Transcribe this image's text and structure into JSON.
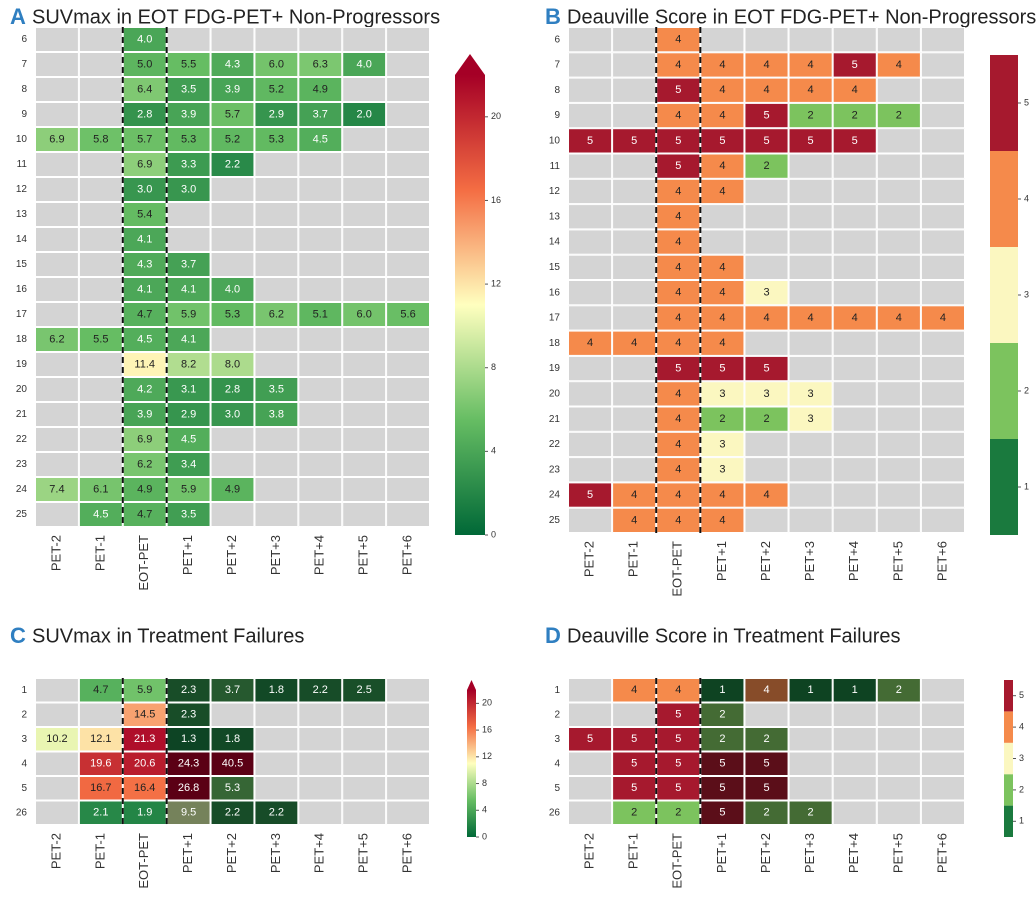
{
  "chart_data": [
    {
      "type": "heatmap",
      "letter": "A",
      "title": "SUVmax in EOT FDG-PET+ Non-Progressors",
      "columns": [
        "PET-2",
        "PET-1",
        "EOT-PET",
        "PET+1",
        "PET+2",
        "PET+3",
        "PET+4",
        "PET+5",
        "PET+6"
      ],
      "rows": [
        "6",
        "7",
        "8",
        "9",
        "10",
        "11",
        "12",
        "13",
        "14",
        "15",
        "16",
        "17",
        "18",
        "19",
        "20",
        "21",
        "22",
        "23",
        "24",
        "25"
      ],
      "values": [
        [
          null,
          null,
          4.0,
          null,
          null,
          null,
          null,
          null,
          null
        ],
        [
          null,
          null,
          5.0,
          5.5,
          4.3,
          6.0,
          6.3,
          4.0,
          null
        ],
        [
          null,
          null,
          6.4,
          3.5,
          3.9,
          5.2,
          4.9,
          null,
          null
        ],
        [
          null,
          null,
          2.8,
          3.9,
          5.7,
          2.9,
          3.7,
          2.0,
          null
        ],
        [
          6.9,
          5.8,
          5.7,
          5.3,
          5.2,
          5.3,
          4.5,
          null,
          null
        ],
        [
          null,
          null,
          6.9,
          3.3,
          2.2,
          null,
          null,
          null,
          null
        ],
        [
          null,
          null,
          3.0,
          3.0,
          null,
          null,
          null,
          null,
          null
        ],
        [
          null,
          null,
          5.4,
          null,
          null,
          null,
          null,
          null,
          null
        ],
        [
          null,
          null,
          4.1,
          null,
          null,
          null,
          null,
          null,
          null
        ],
        [
          null,
          null,
          4.3,
          3.7,
          null,
          null,
          null,
          null,
          null
        ],
        [
          null,
          null,
          4.1,
          4.1,
          4.0,
          null,
          null,
          null,
          null
        ],
        [
          null,
          null,
          4.7,
          5.9,
          5.3,
          6.2,
          5.1,
          6.0,
          5.6
        ],
        [
          6.2,
          5.5,
          4.5,
          4.1,
          null,
          null,
          null,
          null,
          null
        ],
        [
          null,
          null,
          11.4,
          8.2,
          8.0,
          null,
          null,
          null,
          null
        ],
        [
          null,
          null,
          4.2,
          3.1,
          2.8,
          3.5,
          null,
          null,
          null
        ],
        [
          null,
          null,
          3.9,
          2.9,
          3.0,
          3.8,
          null,
          null,
          null
        ],
        [
          null,
          null,
          6.9,
          4.5,
          null,
          null,
          null,
          null,
          null
        ],
        [
          null,
          null,
          6.2,
          3.4,
          null,
          null,
          null,
          null,
          null
        ],
        [
          7.4,
          6.1,
          4.9,
          5.9,
          4.9,
          null,
          null,
          null,
          null
        ],
        [
          null,
          4.5,
          4.7,
          3.5,
          null,
          null,
          null,
          null,
          null
        ]
      ],
      "value_labels": [
        [
          null,
          null,
          "4.0",
          null,
          null,
          null,
          null,
          null,
          null
        ],
        [
          null,
          null,
          "5.0",
          "5.5",
          "4.3",
          "6.0",
          "6.3",
          "4.0",
          null
        ],
        [
          null,
          null,
          "6.4",
          "3.5",
          "3.9",
          "5.2",
          "4.9",
          null,
          null
        ],
        [
          null,
          null,
          "2.8",
          "3.9",
          "5.7",
          "2.9",
          "3.7",
          "2.0",
          null
        ],
        [
          "6.9",
          "5.8",
          "5.7",
          "5.3",
          "5.2",
          "5.3",
          "4.5",
          null,
          null
        ],
        [
          null,
          null,
          "6.9",
          "3.3",
          "2.2",
          null,
          null,
          null,
          null
        ],
        [
          null,
          null,
          "3.0",
          "3.0",
          null,
          null,
          null,
          null,
          null
        ],
        [
          null,
          null,
          "5.4",
          null,
          null,
          null,
          null,
          null,
          null
        ],
        [
          null,
          null,
          "4.1",
          null,
          null,
          null,
          null,
          null,
          null
        ],
        [
          null,
          null,
          "4.3",
          "3.7",
          null,
          null,
          null,
          null,
          null
        ],
        [
          null,
          null,
          "4.1",
          "4.1",
          "4.0",
          null,
          null,
          null,
          null
        ],
        [
          null,
          null,
          "4.7",
          "5.9",
          "5.3",
          "6.2",
          "5.1",
          "6.0",
          "5.6"
        ],
        [
          "6.2",
          "5.5",
          "4.5",
          "4.1",
          null,
          null,
          null,
          null,
          null
        ],
        [
          null,
          null,
          "11.4",
          "8.2",
          "8.0",
          null,
          null,
          null,
          null
        ],
        [
          null,
          null,
          "4.2",
          "3.1",
          "2.8",
          "3.5",
          null,
          null,
          null
        ],
        [
          null,
          null,
          "3.9",
          "2.9",
          "3.0",
          "3.8",
          null,
          null,
          null
        ],
        [
          null,
          null,
          "6.9",
          "4.5",
          null,
          null,
          null,
          null,
          null
        ],
        [
          null,
          null,
          "6.2",
          "3.4",
          null,
          null,
          null,
          null,
          null
        ],
        [
          "7.4",
          "6.1",
          "4.9",
          "5.9",
          "4.9",
          null,
          null,
          null,
          null
        ],
        [
          null,
          "4.5",
          "4.7",
          "3.5",
          null,
          null,
          null,
          null,
          null
        ]
      ],
      "colormap": [
        "#006837",
        "#66bd63",
        "#ffffbf",
        "#f46d43",
        "#a50026"
      ],
      "zlim": [
        0,
        22
      ],
      "zticks": [
        0,
        4,
        8,
        12,
        16,
        20
      ],
      "extend": "max"
    },
    {
      "type": "discrete-heatmap",
      "letter": "B",
      "title": "Deauville Score in EOT FDG-PET+ Non-Progressors",
      "columns": [
        "PET-2",
        "PET-1",
        "EOT-PET",
        "PET+1",
        "PET+2",
        "PET+3",
        "PET+4",
        "PET+5",
        "PET+6"
      ],
      "rows": [
        "6",
        "7",
        "8",
        "9",
        "10",
        "11",
        "12",
        "13",
        "14",
        "15",
        "16",
        "17",
        "18",
        "19",
        "20",
        "21",
        "22",
        "23",
        "24",
        "25"
      ],
      "values": [
        [
          null,
          null,
          4,
          null,
          null,
          null,
          null,
          null,
          null
        ],
        [
          null,
          null,
          4,
          4,
          4,
          4,
          5,
          4,
          null
        ],
        [
          null,
          null,
          5,
          4,
          4,
          4,
          4,
          null,
          null
        ],
        [
          null,
          null,
          4,
          4,
          5,
          2,
          2,
          2,
          null
        ],
        [
          5,
          5,
          5,
          5,
          5,
          5,
          5,
          null,
          null
        ],
        [
          null,
          null,
          5,
          4,
          2,
          null,
          null,
          null,
          null
        ],
        [
          null,
          null,
          4,
          4,
          null,
          null,
          null,
          null,
          null
        ],
        [
          null,
          null,
          4,
          null,
          null,
          null,
          null,
          null,
          null
        ],
        [
          null,
          null,
          4,
          null,
          null,
          null,
          null,
          null,
          null
        ],
        [
          null,
          null,
          4,
          4,
          null,
          null,
          null,
          null,
          null
        ],
        [
          null,
          null,
          4,
          4,
          3,
          null,
          null,
          null,
          null
        ],
        [
          null,
          null,
          4,
          4,
          4,
          4,
          4,
          4,
          4
        ],
        [
          4,
          4,
          4,
          4,
          null,
          null,
          null,
          null,
          null
        ],
        [
          null,
          null,
          5,
          5,
          5,
          null,
          null,
          null,
          null
        ],
        [
          null,
          null,
          4,
          3,
          3,
          3,
          null,
          null,
          null
        ],
        [
          null,
          null,
          4,
          2,
          2,
          3,
          null,
          null,
          null
        ],
        [
          null,
          null,
          4,
          3,
          null,
          null,
          null,
          null,
          null
        ],
        [
          null,
          null,
          4,
          3,
          null,
          null,
          null,
          null,
          null
        ],
        [
          5,
          4,
          4,
          4,
          4,
          null,
          null,
          null,
          null
        ],
        [
          null,
          4,
          4,
          4,
          null,
          null,
          null,
          null,
          null
        ]
      ],
      "colors": [
        "#1a7a3e",
        "#7cc35e",
        "#fbf7c0",
        "#f58a4b",
        "#a6192e"
      ],
      "zlim": [
        0.5,
        5.5
      ],
      "zticks": [
        1,
        2,
        3,
        4,
        5
      ]
    },
    {
      "type": "heatmap",
      "letter": "C",
      "title": "SUVmax in Treatment Failures",
      "columns": [
        "PET-2",
        "PET-1",
        "EOT-PET",
        "PET+1",
        "PET+2",
        "PET+3",
        "PET+4",
        "PET+5",
        "PET+6"
      ],
      "rows": [
        "1",
        "2",
        "3",
        "4",
        "5",
        "26"
      ],
      "values": [
        [
          null,
          4.7,
          5.9,
          2.3,
          3.7,
          1.8,
          2.2,
          2.5,
          null
        ],
        [
          null,
          null,
          14.5,
          2.3,
          null,
          null,
          null,
          null,
          null
        ],
        [
          10.2,
          12.1,
          21.3,
          1.3,
          1.8,
          null,
          null,
          null,
          null
        ],
        [
          null,
          19.6,
          20.6,
          24.3,
          40.5,
          null,
          null,
          null,
          null
        ],
        [
          null,
          16.7,
          16.4,
          26.8,
          5.3,
          null,
          null,
          null,
          null
        ],
        [
          null,
          2.1,
          1.9,
          9.5,
          2.2,
          2.2,
          null,
          null,
          null
        ]
      ],
      "value_labels": [
        [
          null,
          "4.7",
          "5.9",
          "2.3",
          "3.7",
          "1.8",
          "2.2",
          "2.5",
          null
        ],
        [
          null,
          null,
          "14.5",
          "2.3",
          null,
          null,
          null,
          null,
          null
        ],
        [
          "10.2",
          "12.1",
          "21.3",
          "1.3",
          "1.8",
          null,
          null,
          null,
          null
        ],
        [
          null,
          "19.6",
          "20.6",
          "24.3",
          "40.5",
          null,
          null,
          null,
          null
        ],
        [
          null,
          "16.7",
          "16.4",
          "26.8",
          "5.3",
          null,
          null,
          null,
          null
        ],
        [
          null,
          "2.1",
          "1.9",
          "9.5",
          "2.2",
          "2.2",
          null,
          null,
          null
        ]
      ],
      "colormap": [
        "#006837",
        "#66bd63",
        "#ffffbf",
        "#f46d43",
        "#a50026"
      ],
      "zlim": [
        0,
        22
      ],
      "zticks": [
        0,
        4,
        8,
        12,
        16,
        20
      ],
      "extend": "max"
    },
    {
      "type": "discrete-heatmap",
      "letter": "D",
      "title": "Deauville Score in Treatment Failures",
      "columns": [
        "PET-2",
        "PET-1",
        "EOT-PET",
        "PET+1",
        "PET+2",
        "PET+3",
        "PET+4",
        "PET+5",
        "PET+6"
      ],
      "rows": [
        "1",
        "2",
        "3",
        "4",
        "5",
        "26"
      ],
      "values": [
        [
          null,
          4,
          4,
          1,
          4,
          1,
          1,
          2,
          null
        ],
        [
          null,
          null,
          5,
          2,
          null,
          null,
          null,
          null,
          null
        ],
        [
          5,
          5,
          5,
          2,
          2,
          null,
          null,
          null,
          null
        ],
        [
          null,
          5,
          5,
          5,
          5,
          null,
          null,
          null,
          null
        ],
        [
          null,
          5,
          5,
          5,
          5,
          null,
          null,
          null,
          null
        ],
        [
          null,
          2,
          2,
          5,
          2,
          2,
          null,
          null,
          null
        ]
      ],
      "colors": [
        "#1a7a3e",
        "#7cc35e",
        "#fbf7c0",
        "#f58a4b",
        "#a6192e"
      ],
      "zlim": [
        0.5,
        5.5
      ],
      "zticks": [
        1,
        2,
        3,
        4,
        5
      ]
    }
  ]
}
